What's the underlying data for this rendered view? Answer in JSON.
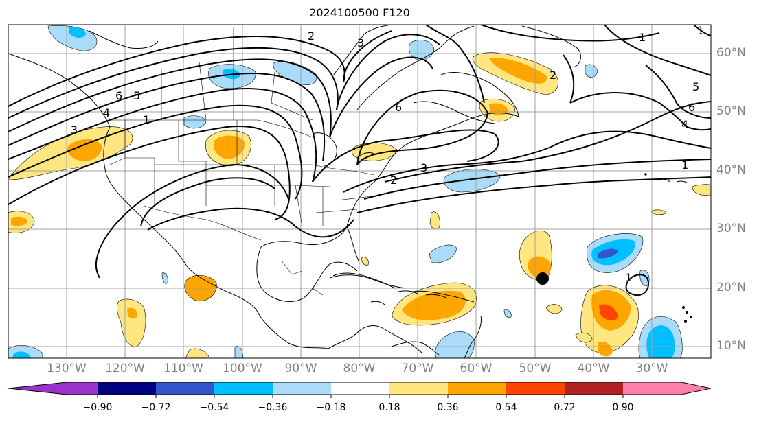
{
  "title": "2024100500 F120",
  "lat_labels": [
    "60°N",
    "50°N",
    "40°N",
    "30°N",
    "20°N",
    "10°N"
  ],
  "lon_labels": [
    "130°W",
    "120°W",
    "110°W",
    "100°W",
    "90°W",
    "80°W",
    "70°W",
    "60°W",
    "50°W",
    "40°W",
    "30°W"
  ],
  "colorbar": {
    "ticks": [
      "−0.90",
      "−0.72",
      "−0.54",
      "−0.36",
      "−0.18",
      "0.18",
      "0.36",
      "0.54",
      "0.72",
      "0.90"
    ],
    "colors": [
      "#9933cc",
      "#000080",
      "#3355cc",
      "#00bfff",
      "#aadcfa",
      "#ffffff",
      "#ffe680",
      "#ffa500",
      "#ff4500",
      "#b22222",
      "#ff80aa"
    ]
  },
  "contour_labels": [
    "1",
    "2",
    "3",
    "4",
    "5",
    "6",
    "1",
    "2",
    "3",
    "4",
    "5",
    "6",
    "3",
    "2",
    "6",
    "1",
    "1",
    "1"
  ],
  "marker": "storm-position-dot"
}
